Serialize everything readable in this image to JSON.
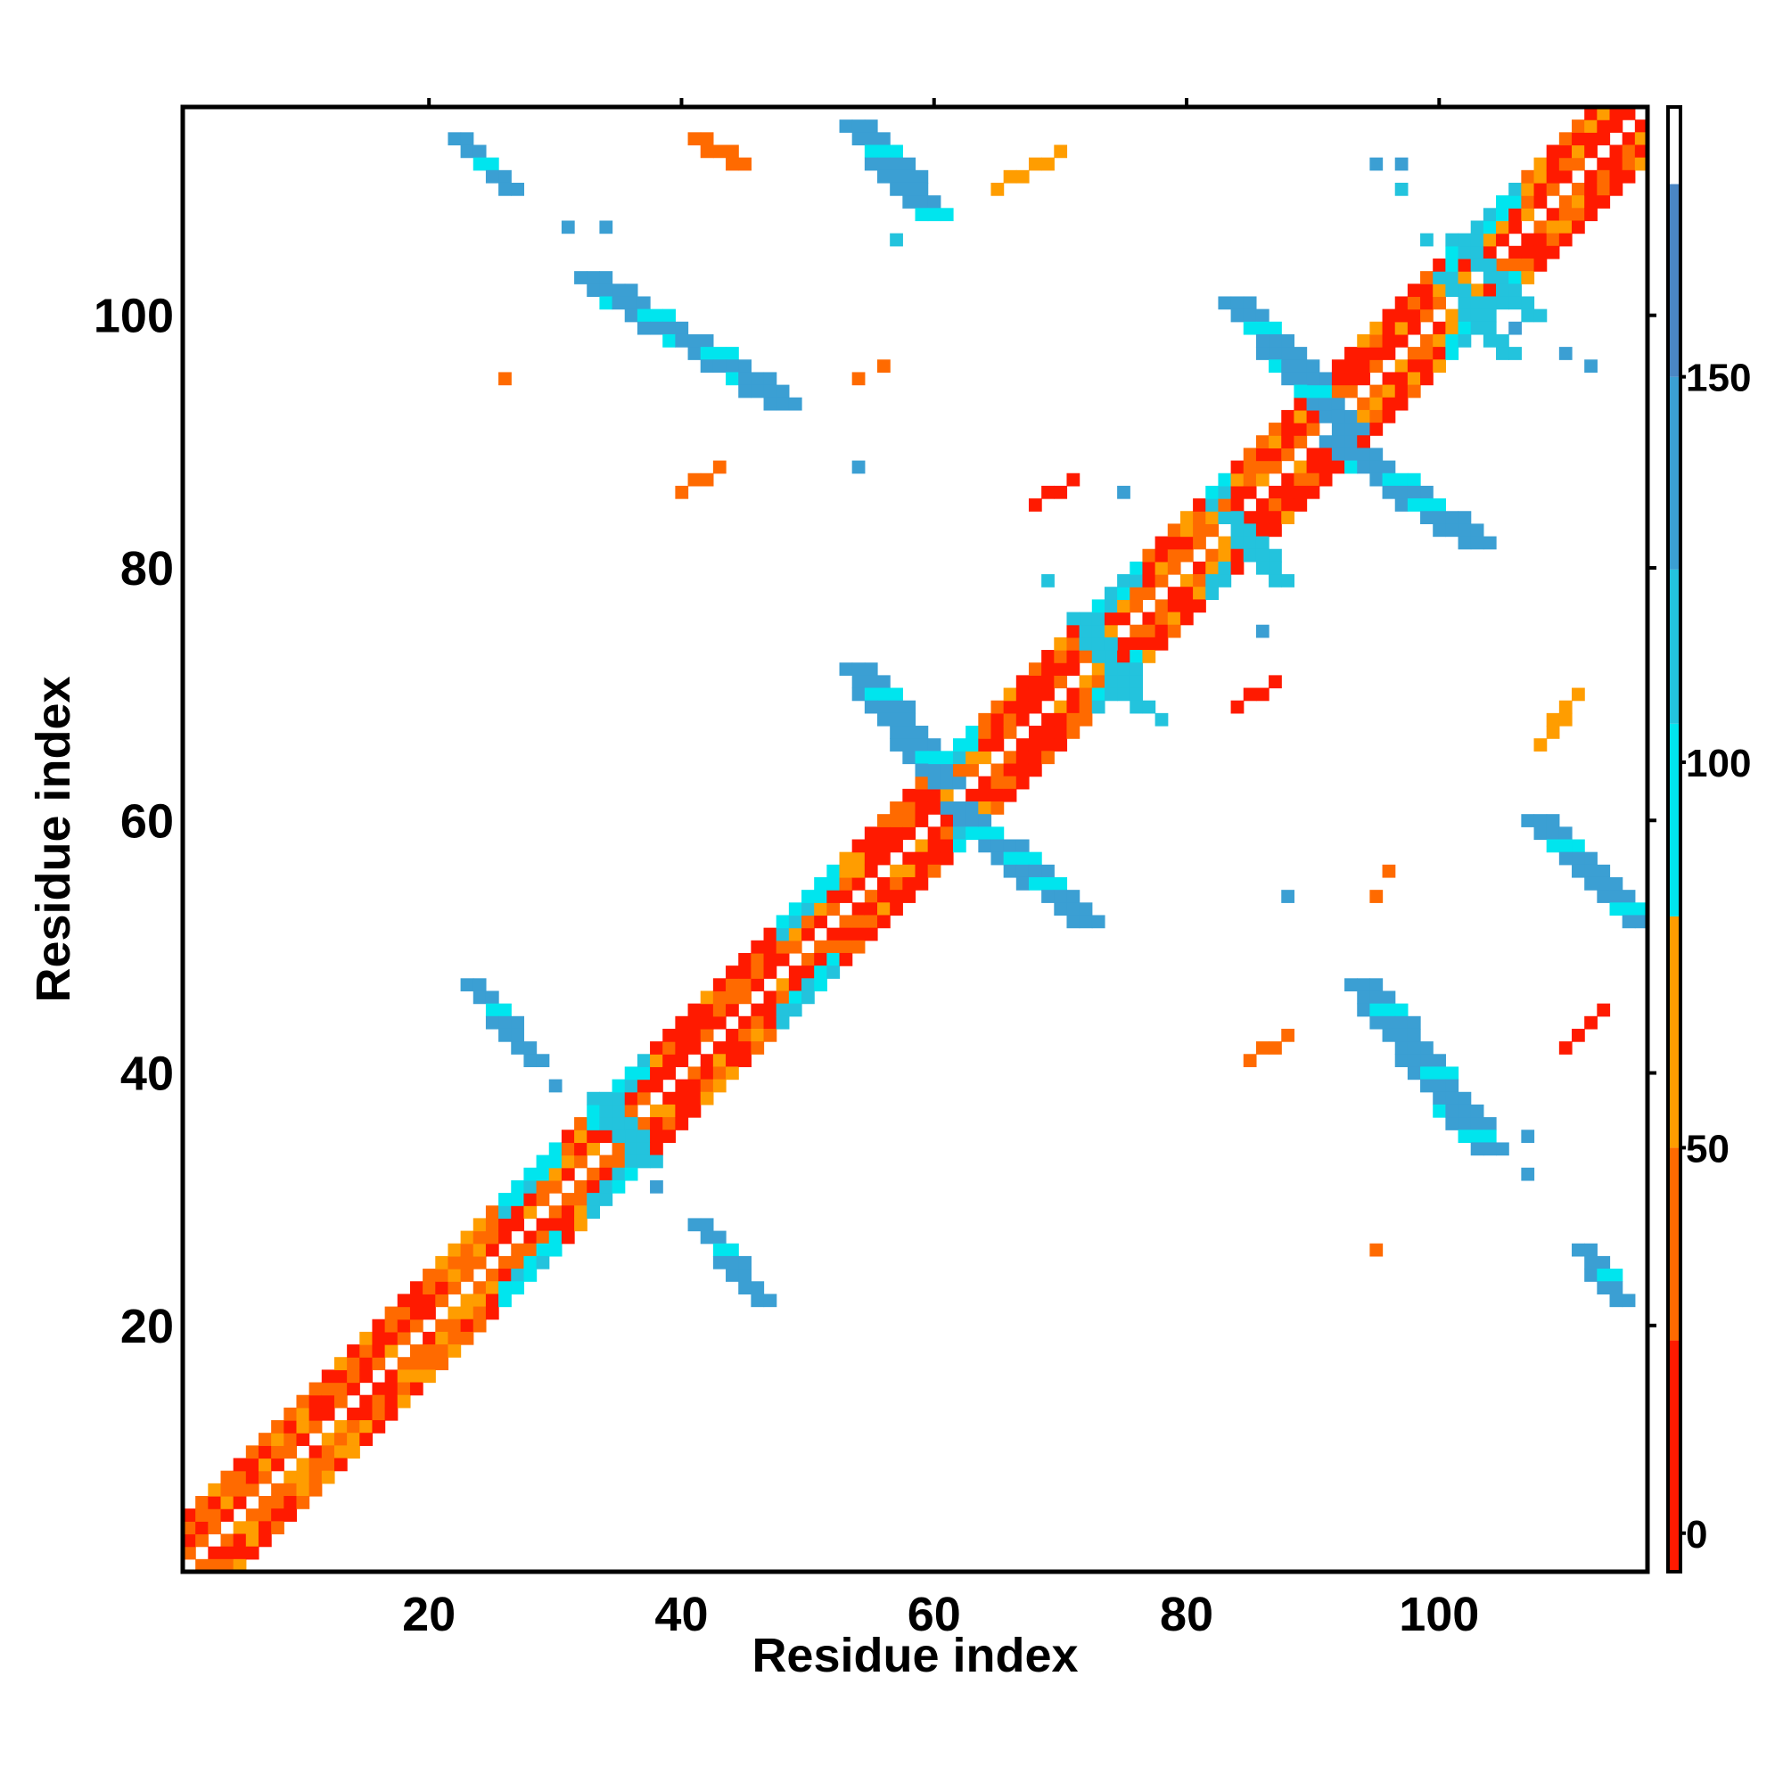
{
  "chart_data": {
    "type": "heatmap",
    "title": "",
    "xlabel": "Residue index",
    "ylabel": "Residue index",
    "xlim": [
      0.5,
      116.5
    ],
    "ylim": [
      0.5,
      116.5
    ],
    "x_ticks": [
      20,
      40,
      60,
      80,
      100
    ],
    "y_ticks": [
      20,
      40,
      60,
      80,
      100
    ],
    "colorbar": {
      "range": [
        -5,
        185
      ],
      "ticks": [
        0,
        50,
        100,
        150
      ],
      "bands": [
        {
          "from": -5,
          "to": 25,
          "color": "#ff1a00"
        },
        {
          "from": 25,
          "to": 50,
          "color": "#ff6a00"
        },
        {
          "from": 50,
          "to": 80,
          "color": "#ff9d00"
        },
        {
          "from": 80,
          "to": 105,
          "color": "#00e5ee"
        },
        {
          "from": 105,
          "to": 125,
          "color": "#23c3dd"
        },
        {
          "from": 125,
          "to": 150,
          "color": "#3b9fd3"
        },
        {
          "from": 150,
          "to": 175,
          "color": "#4a86c4"
        },
        {
          "from": 175,
          "to": 185,
          "color": "#ffffff"
        }
      ]
    },
    "diagonal": {
      "x_range": [
        1,
        116
      ],
      "offsets": [
        1,
        2,
        3,
        4
      ],
      "value_note": "alpha/coil region values"
    },
    "segments": [
      {
        "x1": 22,
        "y1": 114,
        "x2": 26,
        "y2": 110,
        "width": 2,
        "value": 140
      },
      {
        "x1": 32,
        "y1": 103,
        "x2": 47,
        "y2": 93,
        "width": 3,
        "value": 145
      },
      {
        "x1": 53,
        "y1": 115,
        "x2": 59,
        "y2": 108,
        "width": 3,
        "value": 145
      },
      {
        "x1": 53,
        "y1": 72,
        "x2": 60,
        "y2": 63,
        "width": 3,
        "value": 145
      },
      {
        "x1": 61,
        "y1": 61,
        "x2": 71,
        "y2": 52,
        "width": 3,
        "value": 145
      },
      {
        "x1": 83,
        "y1": 101,
        "x2": 92,
        "y2": 91,
        "width": 3,
        "value": 145
      },
      {
        "x1": 91,
        "y1": 90,
        "x2": 102,
        "y2": 82,
        "width": 3,
        "value": 145
      },
      {
        "x1": 23,
        "y1": 47,
        "x2": 28,
        "y2": 41,
        "width": 2,
        "value": 145
      },
      {
        "x1": 33,
        "y1": 38,
        "x2": 37,
        "y2": 33,
        "width": 2,
        "value": 110
      },
      {
        "x1": 41,
        "y1": 28,
        "x2": 46,
        "y2": 22,
        "width": 2,
        "value": 145
      },
      {
        "x1": 93,
        "y1": 47,
        "x2": 103,
        "y2": 34,
        "width": 3,
        "value": 145
      },
      {
        "x1": 107,
        "y1": 60,
        "x2": 115,
        "y2": 52,
        "width": 3,
        "value": 145
      },
      {
        "x1": 111,
        "y1": 26,
        "x2": 114,
        "y2": 22,
        "width": 2,
        "value": 145
      },
      {
        "x1": 71,
        "y1": 76,
        "x2": 76,
        "y2": 69,
        "width": 2,
        "value": 110
      },
      {
        "x1": 83,
        "y1": 84,
        "x2": 87,
        "y2": 79,
        "width": 2,
        "value": 110
      },
      {
        "x1": 100,
        "y1": 103,
        "x2": 105,
        "y2": 97,
        "width": 2,
        "value": 110
      },
      {
        "x1": 101,
        "y1": 106,
        "x2": 107,
        "y2": 100,
        "width": 2,
        "value": 110
      },
      {
        "x1": 41,
        "y1": 114,
        "x2": 44,
        "y2": 112,
        "width": 2,
        "value": 40
      },
      {
        "x1": 65,
        "y1": 110,
        "x2": 70,
        "y2": 113,
        "width": 1,
        "value": 60
      },
      {
        "x1": 40,
        "y1": 86,
        "x2": 43,
        "y2": 88,
        "width": 1,
        "value": 40
      },
      {
        "x1": 68,
        "y1": 85,
        "x2": 71,
        "y2": 87,
        "width": 1,
        "value": 10
      },
      {
        "x1": 84,
        "y1": 69,
        "x2": 87,
        "y2": 71,
        "width": 1,
        "value": 10
      },
      {
        "x1": 85,
        "y1": 41,
        "x2": 88,
        "y2": 43,
        "width": 1,
        "value": 40
      },
      {
        "x1": 108,
        "y1": 66,
        "x2": 111,
        "y2": 70,
        "width": 1,
        "value": 60
      },
      {
        "x1": 110,
        "y1": 42,
        "x2": 113,
        "y2": 45,
        "width": 1,
        "value": 20
      }
    ],
    "points": [
      {
        "x": 26,
        "y": 95,
        "value": 40
      },
      {
        "x": 54,
        "y": 95,
        "value": 40
      },
      {
        "x": 56,
        "y": 96,
        "value": 40
      },
      {
        "x": 54,
        "y": 88,
        "value": 140
      },
      {
        "x": 75,
        "y": 86,
        "value": 145
      },
      {
        "x": 31,
        "y": 107,
        "value": 140
      },
      {
        "x": 34,
        "y": 107,
        "value": 140
      },
      {
        "x": 57,
        "y": 106,
        "value": 110
      },
      {
        "x": 88,
        "y": 54,
        "value": 140
      },
      {
        "x": 95,
        "y": 54,
        "value": 40
      },
      {
        "x": 96,
        "y": 56,
        "value": 40
      },
      {
        "x": 95,
        "y": 26,
        "value": 40
      },
      {
        "x": 86,
        "y": 75,
        "value": 140
      },
      {
        "x": 107,
        "y": 35,
        "value": 140
      },
      {
        "x": 107,
        "y": 32,
        "value": 140
      },
      {
        "x": 38,
        "y": 31,
        "value": 140
      },
      {
        "x": 30,
        "y": 39,
        "value": 140
      },
      {
        "x": 95,
        "y": 112,
        "value": 140
      },
      {
        "x": 97,
        "y": 112,
        "value": 140
      },
      {
        "x": 97,
        "y": 110,
        "value": 110
      },
      {
        "x": 99,
        "y": 106,
        "value": 110
      },
      {
        "x": 106,
        "y": 99,
        "value": 140
      },
      {
        "x": 110,
        "y": 97,
        "value": 140
      },
      {
        "x": 112,
        "y": 96,
        "value": 140
      },
      {
        "x": 69,
        "y": 79,
        "value": 110
      },
      {
        "x": 78,
        "y": 68,
        "value": 110
      }
    ]
  }
}
